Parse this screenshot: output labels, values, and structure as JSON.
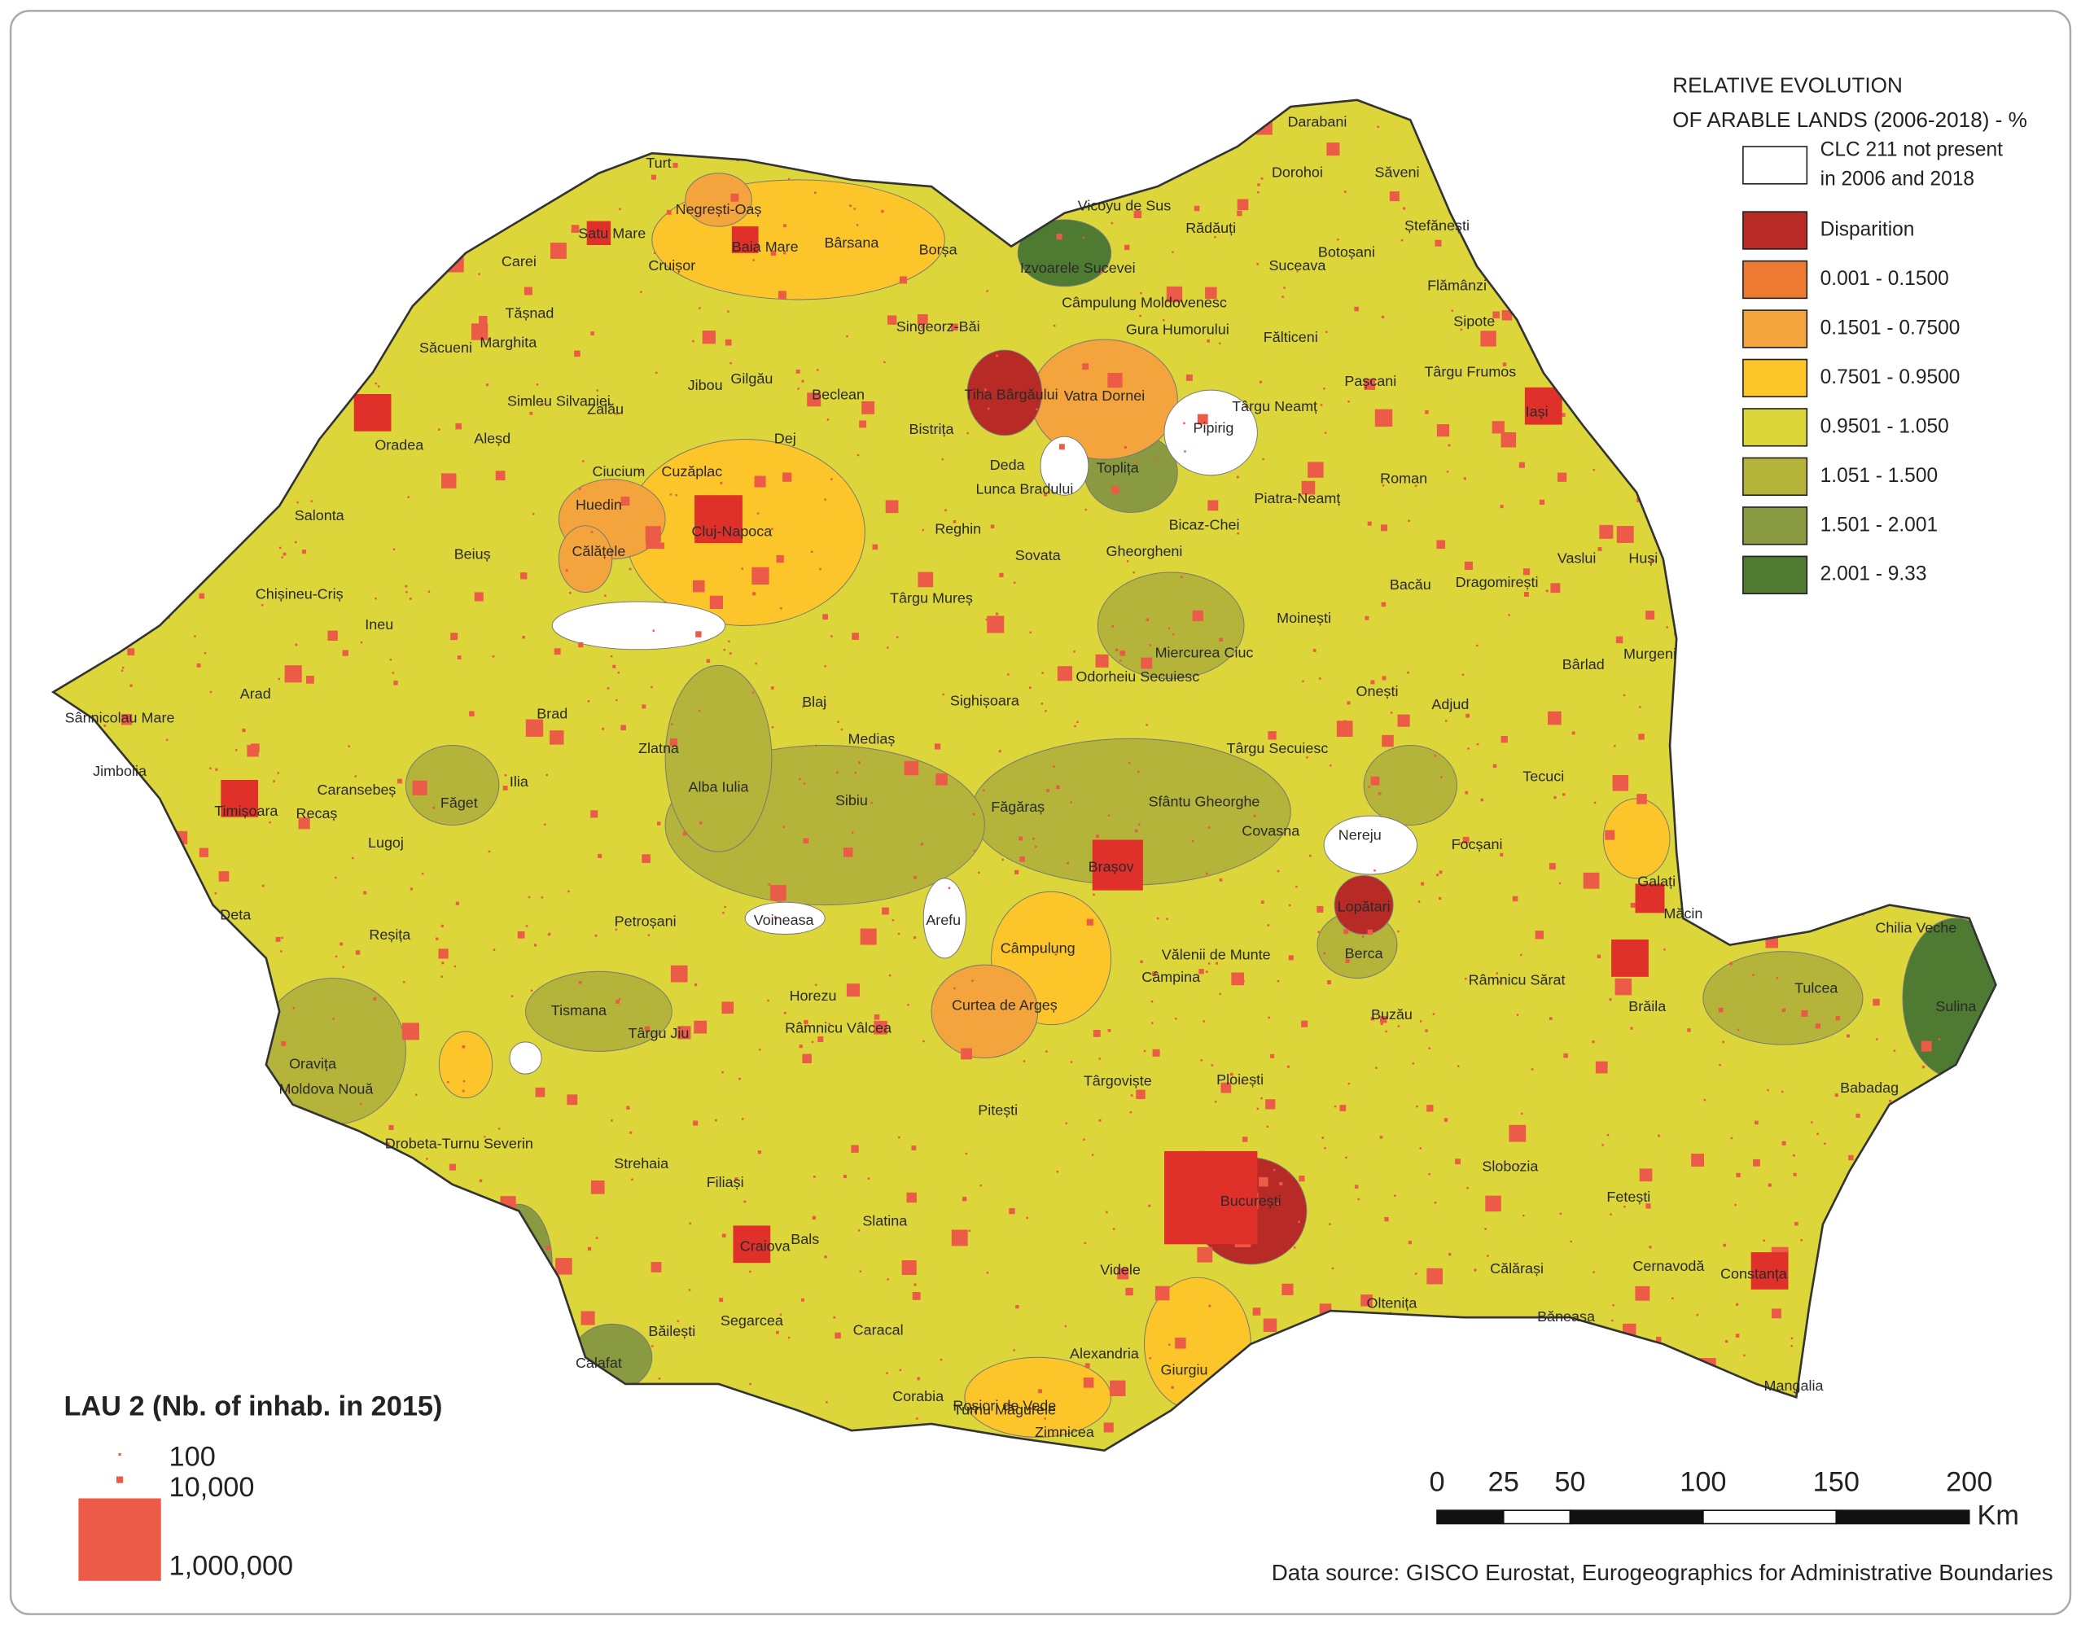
{
  "legend": {
    "title": [
      "RELATIVE EVOLUTION",
      "OF ARABLE LANDS (2006-2018) - %"
    ],
    "classes": [
      {
        "label": [
          "CLC 211 not present",
          "in 2006 and 2018"
        ],
        "color": "#ffffff"
      },
      {
        "label": [
          "Disparition"
        ],
        "color": "#b82a26"
      },
      {
        "label": [
          "0.001  - 0.1500"
        ],
        "color": "#ec7a30"
      },
      {
        "label": [
          "0.1501 - 0.7500"
        ],
        "color": "#f4a43c"
      },
      {
        "label": [
          "0.7501 - 0.9500"
        ],
        "color": "#fcc62a"
      },
      {
        "label": [
          "0.9501 - 1.050"
        ],
        "color": "#dcd63a"
      },
      {
        "label": [
          "1.051 - 1.500"
        ],
        "color": "#b4b43a"
      },
      {
        "label": [
          "1.501 - 2.001"
        ],
        "color": "#8a9a40"
      },
      {
        "label": [
          "2.001 - 9.33"
        ],
        "color": "#4e7a32"
      }
    ]
  },
  "population_legend": {
    "title": "LAU 2 (Nb. of inhab. in 2015)",
    "items": [
      "100",
      "10,000",
      "1,000,000"
    ],
    "color": "#ec5a48"
  },
  "scale_bar": {
    "ticks": [
      0,
      25,
      50,
      100,
      150,
      200
    ],
    "unit": "Km"
  },
  "source": "Data source: GISCO Eurostat, Eurogeographics for Administrative Boundaries",
  "places": [
    "Turt",
    "Negrești-Oaș",
    "Satu Mare",
    "Baia Mare",
    "Bârsana",
    "Borșa",
    "Carei",
    "Cruișor",
    "Vicoyu de Sus",
    "Rădăuți",
    "Darabani",
    "Dorohoi",
    "Săveni",
    "Ștefănești",
    "Botoșani",
    "Suceava",
    "Izvoarele Sucevei",
    "Câmpulung Moldovenesc",
    "Gura Humorului",
    "Fălticeni",
    "Flămânzi",
    "Sipote",
    "Târgu Frumos",
    "Pașcani",
    "Iași",
    "Tășnad",
    "Săcueni",
    "Marghita",
    "Zalău",
    "Simleu Silvaniei",
    "Oradea",
    "Aleșd",
    "Jibou",
    "Gilgău",
    "Beclean",
    "Singeorz-Băi",
    "Tiha Bârgăului",
    "Vatra Dornei",
    "Pipirig",
    "Târgu Neamț",
    "Bistrița",
    "Dej",
    "Huedin",
    "Ciucium",
    "Cuzăplac",
    "Cluj-Napoca",
    "Călățele",
    "Toplița",
    "Deda",
    "Lunca Bradului",
    "Piatra-Neamț",
    "Roman",
    "Bicaz-Chei",
    "Vaslui",
    "Huși",
    "Bacău",
    "Dragomirești",
    "Moinești",
    "Onești",
    "Bârlad",
    "Murgeni",
    "Salonta",
    "Beiuș",
    "Ineu",
    "Chișineu-Criș",
    "Arad",
    "Sânnicolau Mare",
    "Jimbolia",
    "Timișoara",
    "Recaș",
    "Lugoj",
    "Făget",
    "Ilia",
    "Brad",
    "Zlatna",
    "Alba Iulia",
    "Blaj",
    "Mediaș",
    "Sibiu",
    "Sighișoara",
    "Târgu Mureș",
    "Reghin",
    "Sovata",
    "Gheorgheni",
    "Miercurea Ciuc",
    "Odorheiu Secuiesc",
    "Făgăraș",
    "Brașov",
    "Sfântu Gheorghe",
    "Covasna",
    "Târgu Secuiesc",
    "Adjud",
    "Tecuci",
    "Focșani",
    "Nereju",
    "Lopătari",
    "Galați",
    "Brăila",
    "Măcin",
    "Tulcea",
    "Chilia Veche",
    "Sulina",
    "Babadag",
    "Reșița",
    "Deta",
    "Caransebeș",
    "Oravița",
    "Moldova Nouă",
    "Drobeta-Turnu Severin",
    "Tismana",
    "Târgu Jiu",
    "Petroșani",
    "Voineasa",
    "Arefu",
    "Horezu",
    "Râmnicu Vâlcea",
    "Curtea de Argeș",
    "Câmpulung",
    "Pitești",
    "Târgoviște",
    "Ploiești",
    "Câmpina",
    "Vălenii de Munte",
    "Buzău",
    "Berca",
    "Râmnicu Sărat",
    "Slobozia",
    "Fetești",
    "Cernavodă",
    "Constanța",
    "Mangalia",
    "Băneasa",
    "Călărași",
    "Oltenița",
    "București",
    "Giurgiu",
    "Alexandria",
    "Zimnicea",
    "Roșiori de Vede",
    "Turnu Măgurele",
    "Caracal",
    "Slatina",
    "Craiova",
    "Calafat",
    "Băilești",
    "Segarcea",
    "Filiași",
    "Strehaia",
    "Bals",
    "Corabia",
    "Videle"
  ]
}
